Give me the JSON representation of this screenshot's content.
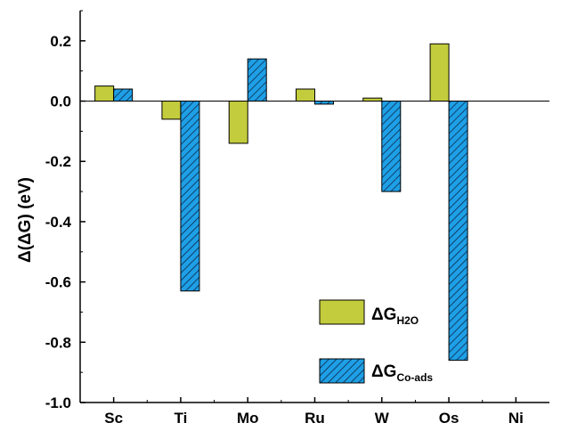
{
  "chart_data": {
    "type": "bar",
    "ylabel": "Δ(ΔG) (eV)",
    "xlabel": "",
    "ylim": [
      -1.0,
      0.3
    ],
    "yticks": [
      0.2,
      0.0,
      -0.2,
      -0.4,
      -0.6,
      -0.8,
      -1.0
    ],
    "ytick_labels": [
      "0.2",
      "0.0",
      "-0.2",
      "-0.4",
      "-0.6",
      "-0.8",
      "-1.0"
    ],
    "categories": [
      "Sc",
      "Ti",
      "Mo",
      "Ru",
      "W",
      "Os",
      "Ni"
    ],
    "grid": false,
    "legend_position": "bottom-right",
    "series": [
      {
        "key": "h2o",
        "name": "ΔG",
        "name_main": "ΔG",
        "name_sub": "H2O",
        "color": "#c3cc3c",
        "pattern": "solid",
        "values": [
          0.05,
          -0.06,
          -0.14,
          0.04,
          0.01,
          0.19,
          null
        ]
      },
      {
        "key": "coads",
        "name": "ΔG",
        "name_main": "ΔG",
        "name_sub": "Co-ads",
        "color": "#1e9fe6",
        "pattern": "hatched",
        "values": [
          0.04,
          -0.63,
          0.14,
          -0.01,
          -0.3,
          -0.86,
          null
        ]
      }
    ]
  }
}
